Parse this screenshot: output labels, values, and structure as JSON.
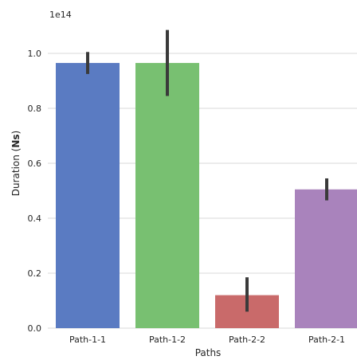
{
  "chart_data": {
    "type": "bar",
    "categories": [
      "Path-1-1",
      "Path-1-2",
      "Path-2-2",
      "Path-2-1"
    ],
    "values": [
      0.965,
      0.965,
      0.12,
      0.505
    ],
    "error_low": [
      0.925,
      0.845,
      0.06,
      0.465
    ],
    "error_high": [
      1.005,
      1.085,
      0.185,
      0.545
    ],
    "colors": [
      "#5a7bc2",
      "#78c071",
      "#c96a6a",
      "#a983bc"
    ],
    "xlabel": "Paths",
    "ylabel": "Duration (Ns)",
    "ylabel_plain": "Duration (",
    "ylabel_bold": "Ns",
    "ylabel_end": ")",
    "offset_text": "1e14",
    "ylim": [
      0,
      1.1
    ],
    "yticks": [
      0.0,
      0.2,
      0.4,
      0.6,
      0.8,
      1.0
    ],
    "ytick_labels": [
      "0.0",
      "0.2",
      "0.4",
      "0.6",
      "0.8",
      "1.0"
    ],
    "grid": "y-only"
  }
}
